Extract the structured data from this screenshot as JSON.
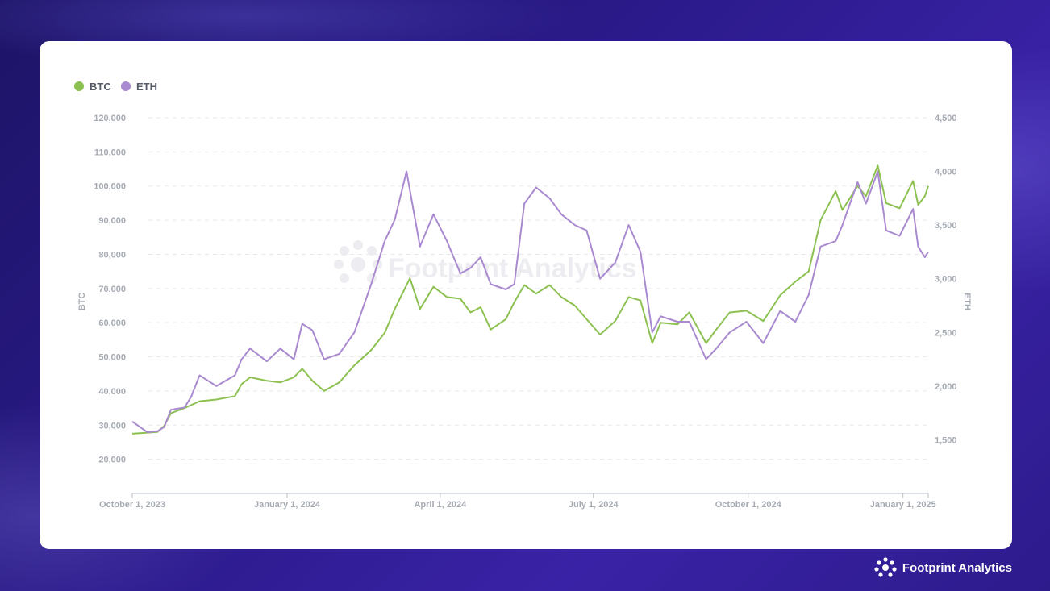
{
  "brand": {
    "name": "Footprint Analytics",
    "icon": "footprint-logo-icon"
  },
  "colors": {
    "btc": "#8cc152",
    "eth": "#a989cf",
    "grid": "#e6e8ec",
    "axis": "#b7bcc4"
  },
  "chart_data": {
    "type": "line",
    "title": "",
    "legend": {
      "placement": "top-left",
      "items": [
        "BTC",
        "ETH"
      ]
    },
    "grid": true,
    "x_axis": {
      "type": "date",
      "range": [
        "2023-10-01",
        "2025-01-16"
      ],
      "tick_labels": [
        "October 1, 2023",
        "January 1, 2024",
        "April 1, 2024",
        "July 1, 2024",
        "October 1, 2024",
        "January 1, 2025"
      ],
      "tick_dates": [
        "2023-10-01",
        "2024-01-01",
        "2024-04-01",
        "2024-07-01",
        "2024-10-01",
        "2025-01-01"
      ]
    },
    "y_left": {
      "label": "BTC",
      "range": [
        10000,
        120000
      ],
      "ticks": [
        20000,
        30000,
        40000,
        50000,
        60000,
        70000,
        80000,
        90000,
        100000,
        110000,
        120000
      ],
      "tick_labels": [
        "20,000",
        "30,000",
        "40,000",
        "50,000",
        "60,000",
        "70,000",
        "80,000",
        "90,000",
        "100,000",
        "110,000",
        "120,000"
      ]
    },
    "y_right": {
      "label": "ETH",
      "range": [
        1000,
        4500
      ],
      "ticks": [
        1500,
        2000,
        2500,
        3000,
        3500,
        4000,
        4500
      ],
      "tick_labels": [
        "1,500",
        "2,000",
        "2,500",
        "3,000",
        "3,500",
        "4,000",
        "4,500"
      ]
    },
    "series": [
      {
        "name": "BTC",
        "axis": "left",
        "points": [
          [
            "2023-10-01",
            27500
          ],
          [
            "2023-10-10",
            27800
          ],
          [
            "2023-10-16",
            28000
          ],
          [
            "2023-10-20",
            29800
          ],
          [
            "2023-10-24",
            33500
          ],
          [
            "2023-11-01",
            35000
          ],
          [
            "2023-11-10",
            37000
          ],
          [
            "2023-11-20",
            37500
          ],
          [
            "2023-12-01",
            38500
          ],
          [
            "2023-12-05",
            42000
          ],
          [
            "2023-12-10",
            44000
          ],
          [
            "2023-12-20",
            43000
          ],
          [
            "2023-12-28",
            42500
          ],
          [
            "2024-01-05",
            44000
          ],
          [
            "2024-01-10",
            46500
          ],
          [
            "2024-01-16",
            43000
          ],
          [
            "2024-01-23",
            40000
          ],
          [
            "2024-02-01",
            42500
          ],
          [
            "2024-02-10",
            47500
          ],
          [
            "2024-02-20",
            52000
          ],
          [
            "2024-02-28",
            57000
          ],
          [
            "2024-03-05",
            64000
          ],
          [
            "2024-03-14",
            73000
          ],
          [
            "2024-03-20",
            64000
          ],
          [
            "2024-03-28",
            70500
          ],
          [
            "2024-04-05",
            67500
          ],
          [
            "2024-04-13",
            67000
          ],
          [
            "2024-04-19",
            63000
          ],
          [
            "2024-04-25",
            64500
          ],
          [
            "2024-05-01",
            58000
          ],
          [
            "2024-05-10",
            61000
          ],
          [
            "2024-05-15",
            66000
          ],
          [
            "2024-05-21",
            71000
          ],
          [
            "2024-05-28",
            68500
          ],
          [
            "2024-06-05",
            71000
          ],
          [
            "2024-06-12",
            67500
          ],
          [
            "2024-06-20",
            65000
          ],
          [
            "2024-06-27",
            61000
          ],
          [
            "2024-07-05",
            56500
          ],
          [
            "2024-07-14",
            60500
          ],
          [
            "2024-07-22",
            67500
          ],
          [
            "2024-07-29",
            66500
          ],
          [
            "2024-08-05",
            54000
          ],
          [
            "2024-08-10",
            60000
          ],
          [
            "2024-08-20",
            59500
          ],
          [
            "2024-08-27",
            63000
          ],
          [
            "2024-09-06",
            54000
          ],
          [
            "2024-09-12",
            58000
          ],
          [
            "2024-09-20",
            63000
          ],
          [
            "2024-09-30",
            63500
          ],
          [
            "2024-10-10",
            60500
          ],
          [
            "2024-10-20",
            68000
          ],
          [
            "2024-10-29",
            72000
          ],
          [
            "2024-11-06",
            75000
          ],
          [
            "2024-11-13",
            90000
          ],
          [
            "2024-11-22",
            98500
          ],
          [
            "2024-11-26",
            93000
          ],
          [
            "2024-12-05",
            100000
          ],
          [
            "2024-12-10",
            97000
          ],
          [
            "2024-12-17",
            106000
          ],
          [
            "2024-12-22",
            95000
          ],
          [
            "2024-12-30",
            93500
          ],
          [
            "2025-01-07",
            101500
          ],
          [
            "2025-01-10",
            94500
          ],
          [
            "2025-01-14",
            97000
          ],
          [
            "2025-01-16",
            100000
          ]
        ]
      },
      {
        "name": "ETH",
        "axis": "right",
        "points": [
          [
            "2023-10-01",
            1670
          ],
          [
            "2023-10-10",
            1570
          ],
          [
            "2023-10-16",
            1580
          ],
          [
            "2023-10-20",
            1620
          ],
          [
            "2023-10-24",
            1780
          ],
          [
            "2023-11-01",
            1800
          ],
          [
            "2023-11-05",
            1900
          ],
          [
            "2023-11-10",
            2100
          ],
          [
            "2023-11-20",
            2000
          ],
          [
            "2023-12-01",
            2100
          ],
          [
            "2023-12-05",
            2250
          ],
          [
            "2023-12-10",
            2350
          ],
          [
            "2023-12-20",
            2230
          ],
          [
            "2023-12-28",
            2350
          ],
          [
            "2024-01-05",
            2250
          ],
          [
            "2024-01-10",
            2580
          ],
          [
            "2024-01-16",
            2520
          ],
          [
            "2024-01-23",
            2250
          ],
          [
            "2024-02-01",
            2300
          ],
          [
            "2024-02-10",
            2500
          ],
          [
            "2024-02-20",
            2950
          ],
          [
            "2024-02-28",
            3350
          ],
          [
            "2024-03-05",
            3550
          ],
          [
            "2024-03-12",
            4000
          ],
          [
            "2024-03-20",
            3300
          ],
          [
            "2024-03-28",
            3600
          ],
          [
            "2024-04-05",
            3350
          ],
          [
            "2024-04-13",
            3050
          ],
          [
            "2024-04-19",
            3100
          ],
          [
            "2024-04-25",
            3200
          ],
          [
            "2024-05-01",
            2950
          ],
          [
            "2024-05-10",
            2900
          ],
          [
            "2024-05-15",
            2950
          ],
          [
            "2024-05-21",
            3700
          ],
          [
            "2024-05-28",
            3850
          ],
          [
            "2024-06-05",
            3750
          ],
          [
            "2024-06-12",
            3600
          ],
          [
            "2024-06-20",
            3500
          ],
          [
            "2024-06-27",
            3450
          ],
          [
            "2024-07-05",
            3000
          ],
          [
            "2024-07-14",
            3150
          ],
          [
            "2024-07-22",
            3500
          ],
          [
            "2024-07-29",
            3250
          ],
          [
            "2024-08-05",
            2500
          ],
          [
            "2024-08-10",
            2650
          ],
          [
            "2024-08-20",
            2600
          ],
          [
            "2024-08-27",
            2600
          ],
          [
            "2024-09-06",
            2250
          ],
          [
            "2024-09-12",
            2350
          ],
          [
            "2024-09-20",
            2500
          ],
          [
            "2024-09-30",
            2600
          ],
          [
            "2024-10-10",
            2400
          ],
          [
            "2024-10-20",
            2700
          ],
          [
            "2024-10-29",
            2600
          ],
          [
            "2024-11-06",
            2850
          ],
          [
            "2024-11-13",
            3300
          ],
          [
            "2024-11-22",
            3350
          ],
          [
            "2024-11-26",
            3500
          ],
          [
            "2024-12-05",
            3900
          ],
          [
            "2024-12-10",
            3700
          ],
          [
            "2024-12-17",
            4000
          ],
          [
            "2024-12-22",
            3450
          ],
          [
            "2024-12-30",
            3400
          ],
          [
            "2025-01-07",
            3650
          ],
          [
            "2025-01-10",
            3300
          ],
          [
            "2025-01-14",
            3200
          ],
          [
            "2025-01-16",
            3250
          ]
        ]
      }
    ],
    "watermark": "Footprint Analytics"
  }
}
